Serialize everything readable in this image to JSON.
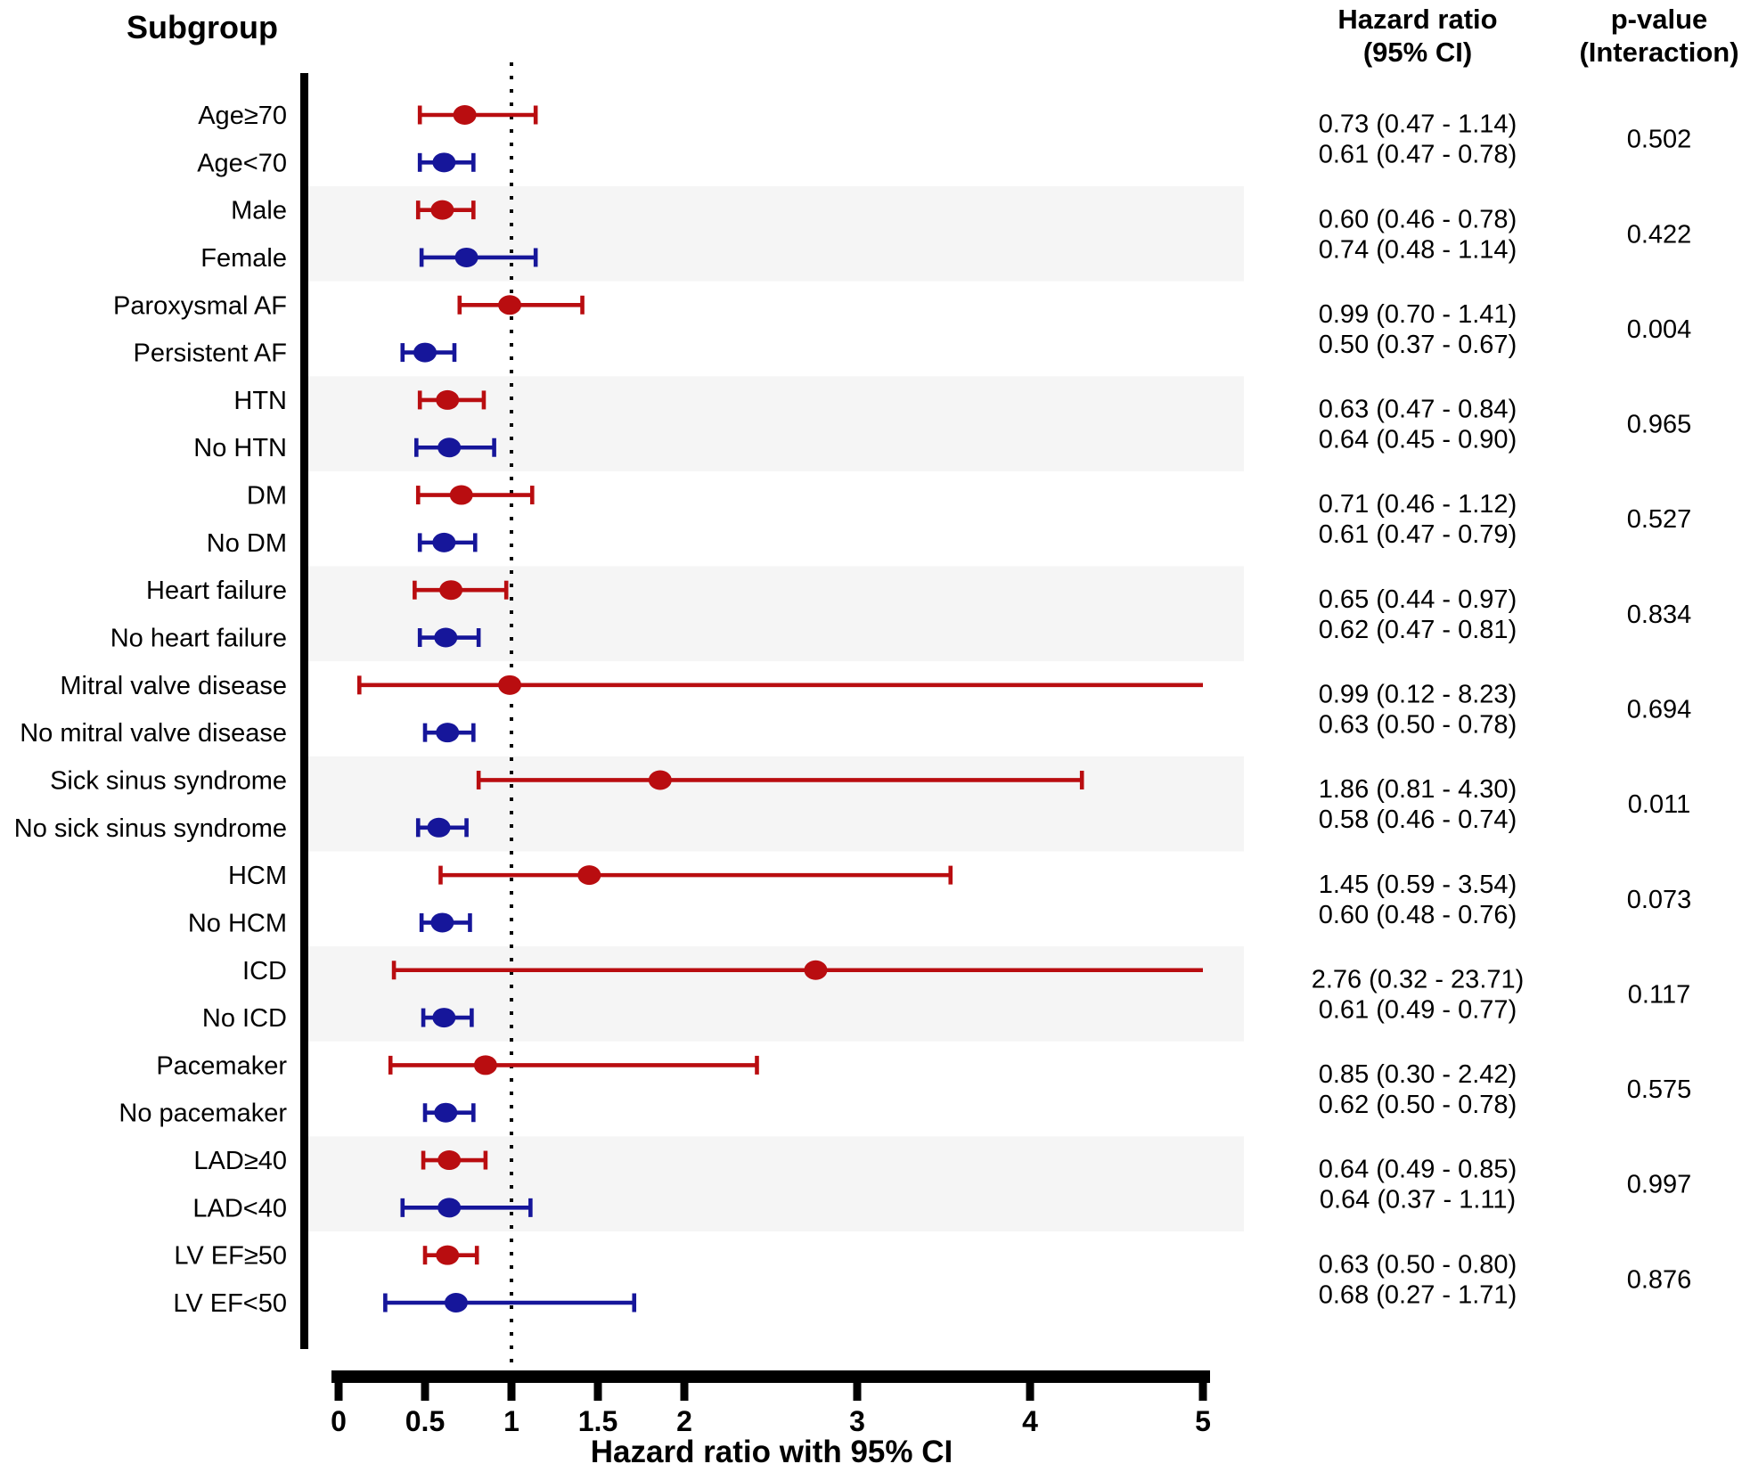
{
  "headers": {
    "subgroup": "Subgroup",
    "hazard_ratio_line1": "Hazard ratio",
    "hazard_ratio_line2": "(95% CI)",
    "pvalue_line1": "p-value",
    "pvalue_line2": "(Interaction)"
  },
  "chart_data": {
    "type": "forest",
    "xlabel": "Hazard ratio with 95% CI",
    "x_ticks": [
      "0",
      "0.5",
      "1",
      "1.5",
      "2",
      "3",
      "4",
      "5"
    ],
    "x_tick_values": [
      0,
      0.5,
      1,
      1.5,
      2,
      3,
      4,
      5
    ],
    "xlim": [
      0,
      5
    ],
    "reference_line": 1,
    "clip_max": 5,
    "legend_position": "none",
    "grid": false,
    "colors": {
      "group1": "#B90D10",
      "group2": "#16169A",
      "band": "#F5F5F5",
      "axis": "#000000"
    },
    "pairs": [
      {
        "p_interaction": "0.502",
        "shaded": false,
        "rows": [
          {
            "label": "Age≥70",
            "hr": 0.73,
            "lo": 0.47,
            "hi": 1.14,
            "ci_text": "0.73 (0.47 - 1.14)",
            "group": "group1"
          },
          {
            "label": "Age<70",
            "hr": 0.61,
            "lo": 0.47,
            "hi": 0.78,
            "ci_text": "0.61 (0.47 - 0.78)",
            "group": "group2"
          }
        ]
      },
      {
        "p_interaction": "0.422",
        "shaded": true,
        "rows": [
          {
            "label": "Male",
            "hr": 0.6,
            "lo": 0.46,
            "hi": 0.78,
            "ci_text": "0.60 (0.46 - 0.78)",
            "group": "group1"
          },
          {
            "label": "Female",
            "hr": 0.74,
            "lo": 0.48,
            "hi": 1.14,
            "ci_text": "0.74 (0.48 - 1.14)",
            "group": "group2"
          }
        ]
      },
      {
        "p_interaction": "0.004",
        "shaded": false,
        "rows": [
          {
            "label": "Paroxysmal AF",
            "hr": 0.99,
            "lo": 0.7,
            "hi": 1.41,
            "ci_text": "0.99 (0.70 - 1.41)",
            "group": "group1"
          },
          {
            "label": "Persistent AF",
            "hr": 0.5,
            "lo": 0.37,
            "hi": 0.67,
            "ci_text": "0.50 (0.37 - 0.67)",
            "group": "group2"
          }
        ]
      },
      {
        "p_interaction": "0.965",
        "shaded": true,
        "rows": [
          {
            "label": "HTN",
            "hr": 0.63,
            "lo": 0.47,
            "hi": 0.84,
            "ci_text": "0.63 (0.47 - 0.84)",
            "group": "group1"
          },
          {
            "label": "No HTN",
            "hr": 0.64,
            "lo": 0.45,
            "hi": 0.9,
            "ci_text": "0.64 (0.45 - 0.90)",
            "group": "group2"
          }
        ]
      },
      {
        "p_interaction": "0.527",
        "shaded": false,
        "rows": [
          {
            "label": "DM",
            "hr": 0.71,
            "lo": 0.46,
            "hi": 1.12,
            "ci_text": "0.71 (0.46 - 1.12)",
            "group": "group1"
          },
          {
            "label": "No DM",
            "hr": 0.61,
            "lo": 0.47,
            "hi": 0.79,
            "ci_text": "0.61 (0.47 - 0.79)",
            "group": "group2"
          }
        ]
      },
      {
        "p_interaction": "0.834",
        "shaded": true,
        "rows": [
          {
            "label": "Heart failure",
            "hr": 0.65,
            "lo": 0.44,
            "hi": 0.97,
            "ci_text": "0.65 (0.44 - 0.97)",
            "group": "group1"
          },
          {
            "label": "No heart failure",
            "hr": 0.62,
            "lo": 0.47,
            "hi": 0.81,
            "ci_text": "0.62 (0.47 - 0.81)",
            "group": "group2"
          }
        ]
      },
      {
        "p_interaction": "0.694",
        "shaded": false,
        "rows": [
          {
            "label": "Mitral valve disease",
            "hr": 0.99,
            "lo": 0.12,
            "hi": 8.23,
            "ci_text": "0.99 (0.12 - 8.23)",
            "group": "group1"
          },
          {
            "label": "No mitral valve disease",
            "hr": 0.63,
            "lo": 0.5,
            "hi": 0.78,
            "ci_text": "0.63 (0.50 - 0.78)",
            "group": "group2"
          }
        ]
      },
      {
        "p_interaction": "0.011",
        "shaded": true,
        "rows": [
          {
            "label": "Sick sinus syndrome",
            "hr": 1.86,
            "lo": 0.81,
            "hi": 4.3,
            "ci_text": "1.86 (0.81 - 4.30)",
            "group": "group1"
          },
          {
            "label": "No sick sinus syndrome",
            "hr": 0.58,
            "lo": 0.46,
            "hi": 0.74,
            "ci_text": "0.58 (0.46 - 0.74)",
            "group": "group2"
          }
        ]
      },
      {
        "p_interaction": "0.073",
        "shaded": false,
        "rows": [
          {
            "label": "HCM",
            "hr": 1.45,
            "lo": 0.59,
            "hi": 3.54,
            "ci_text": "1.45 (0.59 - 3.54)",
            "group": "group1"
          },
          {
            "label": "No HCM",
            "hr": 0.6,
            "lo": 0.48,
            "hi": 0.76,
            "ci_text": "0.60 (0.48 - 0.76)",
            "group": "group2"
          }
        ]
      },
      {
        "p_interaction": "0.117",
        "shaded": true,
        "rows": [
          {
            "label": "ICD",
            "hr": 2.76,
            "lo": 0.32,
            "hi": 23.71,
            "ci_text": "2.76 (0.32 - 23.71)",
            "group": "group1"
          },
          {
            "label": "No ICD",
            "hr": 0.61,
            "lo": 0.49,
            "hi": 0.77,
            "ci_text": "0.61 (0.49 - 0.77)",
            "group": "group2"
          }
        ]
      },
      {
        "p_interaction": "0.575",
        "shaded": false,
        "rows": [
          {
            "label": "Pacemaker",
            "hr": 0.85,
            "lo": 0.3,
            "hi": 2.42,
            "ci_text": "0.85 (0.30 - 2.42)",
            "group": "group1"
          },
          {
            "label": "No pacemaker",
            "hr": 0.62,
            "lo": 0.5,
            "hi": 0.78,
            "ci_text": "0.62 (0.50 - 0.78)",
            "group": "group2"
          }
        ]
      },
      {
        "p_interaction": "0.997",
        "shaded": true,
        "rows": [
          {
            "label": "LAD≥40",
            "hr": 0.64,
            "lo": 0.49,
            "hi": 0.85,
            "ci_text": "0.64 (0.49 - 0.85)",
            "group": "group1"
          },
          {
            "label": "LAD<40",
            "hr": 0.64,
            "lo": 0.37,
            "hi": 1.11,
            "ci_text": "0.64 (0.37 - 1.11)",
            "group": "group2"
          }
        ]
      },
      {
        "p_interaction": "0.876",
        "shaded": false,
        "rows": [
          {
            "label": "LV EF≥50",
            "hr": 0.63,
            "lo": 0.5,
            "hi": 0.8,
            "ci_text": "0.63 (0.50 - 0.80)",
            "group": "group1"
          },
          {
            "label": "LV EF<50",
            "hr": 0.68,
            "lo": 0.27,
            "hi": 1.71,
            "ci_text": "0.68 (0.27 - 1.71)",
            "group": "group2"
          }
        ]
      }
    ]
  }
}
